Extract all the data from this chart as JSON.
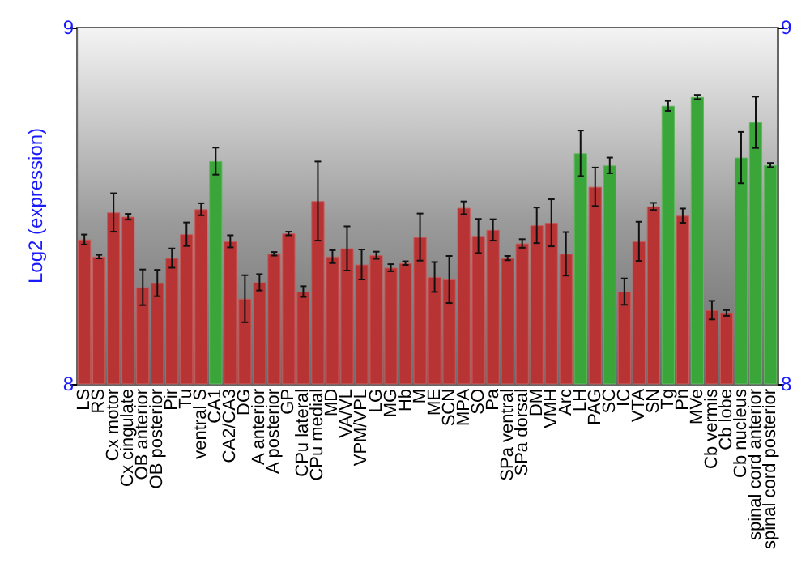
{
  "chart_data": {
    "type": "bar",
    "ylabel": "Log2 (expression)",
    "categories": [
      "LS",
      "RS",
      "Cx motor",
      "Cx cingulate",
      "OB anterior",
      "OB posterior",
      "Pir",
      "Tu",
      "ventral S",
      "CA1",
      "CA2/CA3",
      "DG",
      "A anterior",
      "A posterior",
      "GP",
      "CPu lateral",
      "CPu medial",
      "MD",
      "VA/VL",
      "VPM/VPL",
      "LG",
      "MG",
      "Hb",
      "M",
      "ME",
      "SCN",
      "MPA",
      "SO",
      "Pa",
      "SPa ventral",
      "SPa dorsal",
      "DM",
      "VMH",
      "Arc",
      "LH",
      "PAG",
      "SC",
      "IC",
      "VTA",
      "SN",
      "Tg",
      "Pn",
      "MVe",
      "Cb vermis",
      "Cb lobe",
      "Cb nucleus",
      "spinal cord anterior",
      "spinal cord posterior"
    ],
    "values": [
      8.405,
      8.357,
      8.481,
      8.469,
      8.271,
      8.283,
      8.353,
      8.42,
      8.49,
      8.625,
      8.4,
      8.239,
      8.285,
      8.365,
      8.422,
      8.259,
      8.513,
      8.357,
      8.38,
      8.335,
      8.361,
      8.326,
      8.339,
      8.412,
      8.3,
      8.293,
      8.494,
      8.415,
      8.432,
      8.353,
      8.394,
      8.445,
      8.452,
      8.365,
      8.647,
      8.553,
      8.613,
      8.259,
      8.4,
      8.498,
      8.78,
      8.472,
      8.805,
      8.207,
      8.199,
      8.635,
      8.734,
      8.614
    ],
    "errors": [
      0.014,
      0.005,
      0.054,
      0.008,
      0.05,
      0.037,
      0.027,
      0.033,
      0.017,
      0.038,
      0.017,
      0.066,
      0.023,
      0.005,
      0.005,
      0.015,
      0.111,
      0.018,
      0.062,
      0.042,
      0.01,
      0.01,
      0.005,
      0.066,
      0.042,
      0.066,
      0.018,
      0.048,
      0.03,
      0.006,
      0.012,
      0.05,
      0.066,
      0.061,
      0.064,
      0.054,
      0.022,
      0.037,
      0.055,
      0.01,
      0.014,
      0.02,
      0.006,
      0.026,
      0.008,
      0.072,
      0.072,
      0.006
    ],
    "colors": [
      "#b83434",
      "#b83434",
      "#b83434",
      "#b83434",
      "#b83434",
      "#b83434",
      "#b83434",
      "#b83434",
      "#b83434",
      "#3aa63a",
      "#b83434",
      "#b83434",
      "#b83434",
      "#b83434",
      "#b83434",
      "#b83434",
      "#b83434",
      "#b83434",
      "#b83434",
      "#b83434",
      "#b83434",
      "#b83434",
      "#b83434",
      "#b83434",
      "#b83434",
      "#b83434",
      "#b83434",
      "#b83434",
      "#b83434",
      "#b83434",
      "#b83434",
      "#b83434",
      "#b83434",
      "#b83434",
      "#3aa63a",
      "#b83434",
      "#3aa63a",
      "#b83434",
      "#b83434",
      "#b83434",
      "#3aa63a",
      "#b83434",
      "#3aa63a",
      "#b83434",
      "#b83434",
      "#3aa63a",
      "#3aa63a",
      "#3aa63a"
    ],
    "ylim": [
      8,
      9
    ],
    "yticks": [
      8,
      9
    ],
    "y2lim": [
      8,
      9
    ],
    "y2ticks": [
      8,
      9
    ],
    "grid": false
  }
}
